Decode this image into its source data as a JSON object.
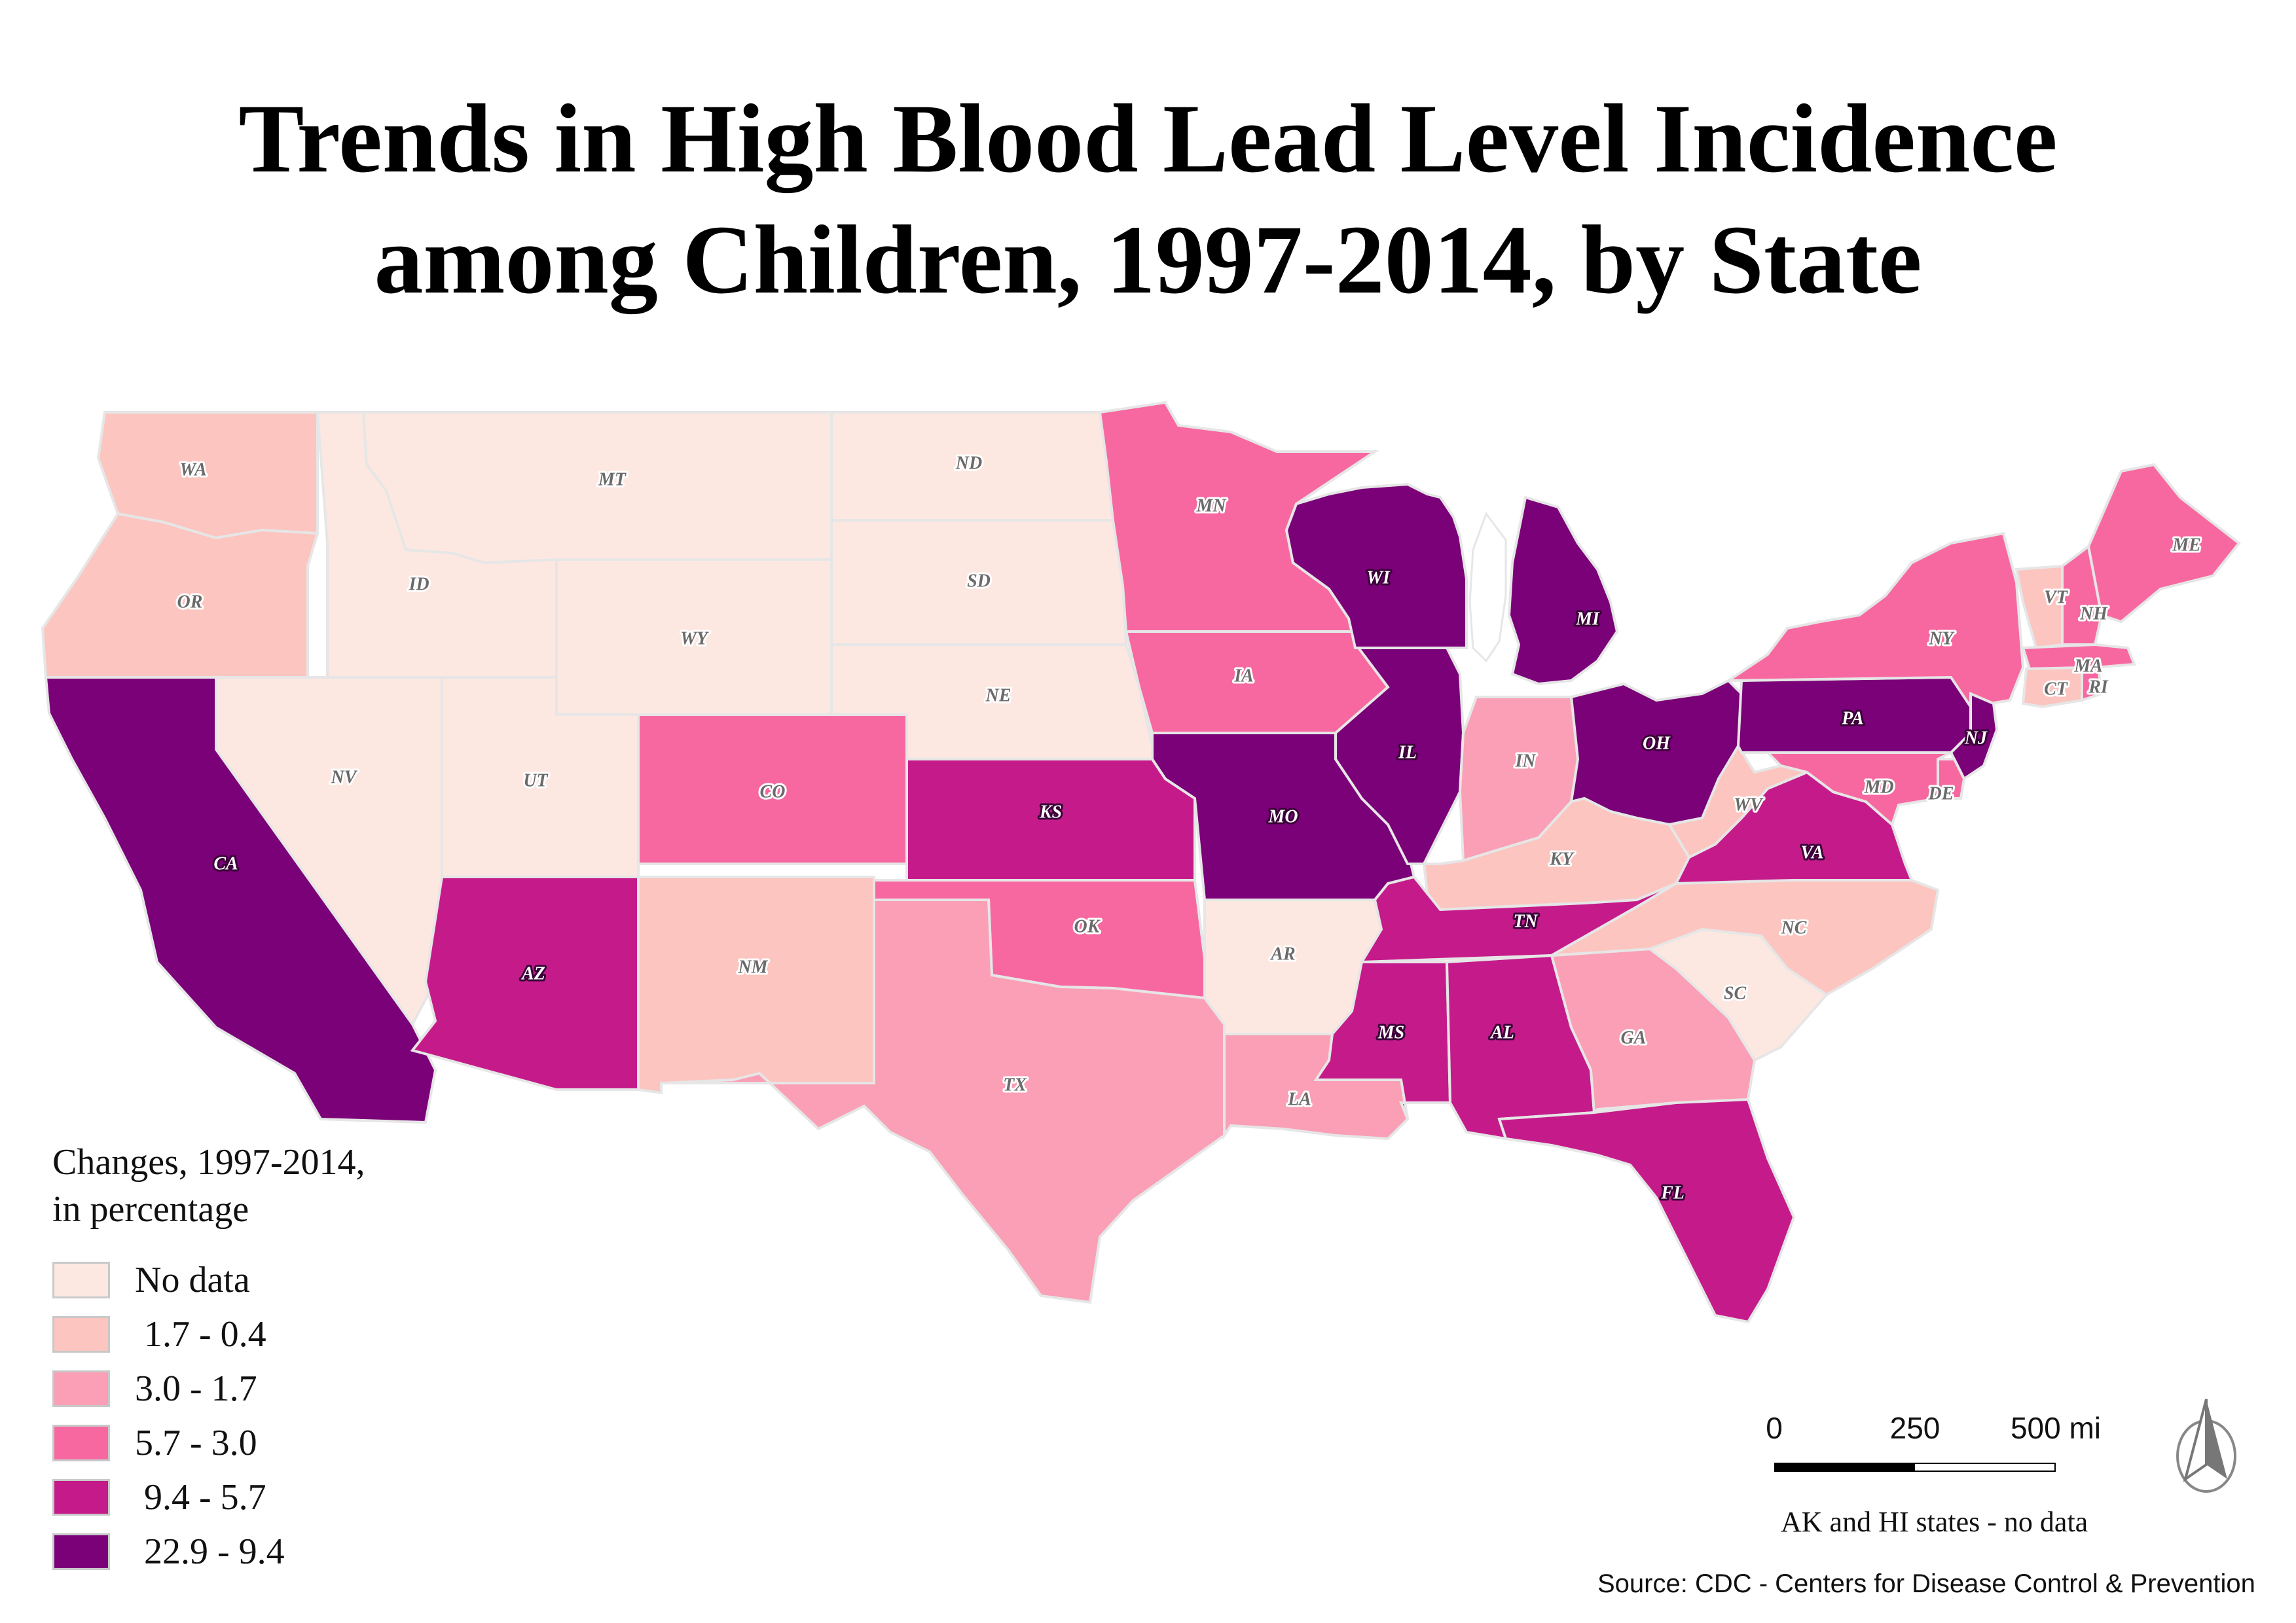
{
  "title": {
    "line1": "Trends in High Blood Lead Level Incidence",
    "line2": "among Children, 1997-2014, by State"
  },
  "legend": {
    "title_line1": "Changes, 1997-2014,",
    "title_line2": "in percentage",
    "classes": [
      {
        "id": "nodata",
        "label": "No data",
        "color": "#fde8e1"
      },
      {
        "id": "c1",
        "label": " 1.7 - 0.4",
        "color": "#fcc5c0"
      },
      {
        "id": "c2",
        "label": "3.0 - 1.7",
        "color": "#fa9fb5"
      },
      {
        "id": "c3",
        "label": "5.7 - 3.0",
        "color": "#f768a1"
      },
      {
        "id": "c4",
        "label": " 9.4 - 5.7",
        "color": "#c51b8a"
      },
      {
        "id": "c5",
        "label": " 22.9 - 9.4",
        "color": "#7a0177"
      }
    ]
  },
  "states": [
    {
      "abbr": "WA",
      "class": "c1"
    },
    {
      "abbr": "OR",
      "class": "c1"
    },
    {
      "abbr": "CA",
      "class": "c5"
    },
    {
      "abbr": "ID",
      "class": "nodata"
    },
    {
      "abbr": "NV",
      "class": "nodata"
    },
    {
      "abbr": "MT",
      "class": "nodata"
    },
    {
      "abbr": "WY",
      "class": "nodata"
    },
    {
      "abbr": "UT",
      "class": "nodata"
    },
    {
      "abbr": "AZ",
      "class": "c4"
    },
    {
      "abbr": "CO",
      "class": "c3"
    },
    {
      "abbr": "NM",
      "class": "c1"
    },
    {
      "abbr": "ND",
      "class": "nodata"
    },
    {
      "abbr": "SD",
      "class": "nodata"
    },
    {
      "abbr": "NE",
      "class": "nodata"
    },
    {
      "abbr": "KS",
      "class": "c4"
    },
    {
      "abbr": "OK",
      "class": "c3"
    },
    {
      "abbr": "TX",
      "class": "c2"
    },
    {
      "abbr": "MN",
      "class": "c3"
    },
    {
      "abbr": "IA",
      "class": "c3"
    },
    {
      "abbr": "MO",
      "class": "c5"
    },
    {
      "abbr": "AR",
      "class": "nodata"
    },
    {
      "abbr": "LA",
      "class": "c2"
    },
    {
      "abbr": "WI",
      "class": "c5"
    },
    {
      "abbr": "IL",
      "class": "c5"
    },
    {
      "abbr": "MI",
      "class": "c5"
    },
    {
      "abbr": "IN",
      "class": "c2"
    },
    {
      "abbr": "OH",
      "class": "c5"
    },
    {
      "abbr": "KY",
      "class": "c1"
    },
    {
      "abbr": "TN",
      "class": "c4"
    },
    {
      "abbr": "MS",
      "class": "c4"
    },
    {
      "abbr": "AL",
      "class": "c4"
    },
    {
      "abbr": "GA",
      "class": "c2"
    },
    {
      "abbr": "FL",
      "class": "c4"
    },
    {
      "abbr": "SC",
      "class": "nodata"
    },
    {
      "abbr": "NC",
      "class": "c1"
    },
    {
      "abbr": "VA",
      "class": "c4"
    },
    {
      "abbr": "WV",
      "class": "c1"
    },
    {
      "abbr": "PA",
      "class": "c5"
    },
    {
      "abbr": "NY",
      "class": "c3"
    },
    {
      "abbr": "NJ",
      "class": "c5"
    },
    {
      "abbr": "DE",
      "class": "c3"
    },
    {
      "abbr": "MD",
      "class": "c3"
    },
    {
      "abbr": "VT",
      "class": "c1"
    },
    {
      "abbr": "NH",
      "class": "c3"
    },
    {
      "abbr": "ME",
      "class": "c3"
    },
    {
      "abbr": "MA",
      "class": "c3"
    },
    {
      "abbr": "CT",
      "class": "c1"
    },
    {
      "abbr": "RI",
      "class": "c3"
    }
  ],
  "scale_bar": {
    "tick0": "0",
    "tick1": "250",
    "tick2": "500 mi"
  },
  "note": "AK and HI states - no data",
  "source": "Source: CDC - Centers for Disease Control & Prevention",
  "north_arrow_icon": "north-arrow-icon"
}
